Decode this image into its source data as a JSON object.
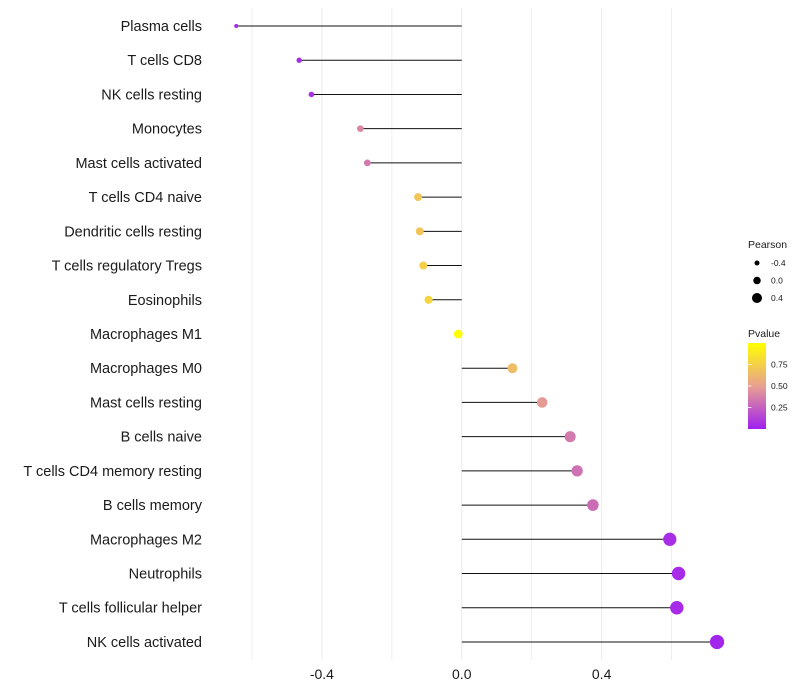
{
  "chart_data": {
    "type": "lollipop",
    "title": "",
    "xlabel": "",
    "ylabel": "",
    "xlim": [
      -0.72,
      0.79
    ],
    "xticks": [
      -0.4,
      0.0,
      0.4
    ],
    "xtick_labels": [
      "-0.4",
      "0.0",
      "0.4"
    ],
    "grid": true,
    "legend_position": "right",
    "categories": [
      "Plasma cells",
      "T cells CD8",
      "NK cells resting",
      "Monocytes",
      "Mast cells activated",
      "T cells CD4 naive",
      "Dendritic cells resting",
      "T cells regulatory  Tregs ",
      "Eosinophils",
      "Macrophages M1",
      "Macrophages M0",
      "Mast cells resting",
      "B cells naive",
      "T cells CD4 memory resting",
      "B cells memory",
      "Macrophages M2",
      "Neutrophils",
      "T cells follicular helper",
      "NK cells activated"
    ],
    "pearson": [
      -0.645,
      -0.465,
      -0.43,
      -0.29,
      -0.27,
      -0.125,
      -0.12,
      -0.11,
      -0.095,
      -0.01,
      0.145,
      0.23,
      0.31,
      0.33,
      0.375,
      0.595,
      0.62,
      0.615,
      0.73
    ],
    "pvalue": [
      0.04,
      0.05,
      0.07,
      0.4,
      0.35,
      0.7,
      0.7,
      0.75,
      0.78,
      0.99,
      0.65,
      0.48,
      0.35,
      0.32,
      0.3,
      0.05,
      0.04,
      0.04,
      0.02
    ],
    "legend_size": {
      "title": "Pearson",
      "values": [
        -0.4,
        0.0,
        0.4
      ],
      "labels": [
        "-0.4",
        "0.0",
        "0.4"
      ]
    },
    "legend_color": {
      "title": "Pvalue",
      "values": [
        0.75,
        0.5,
        0.25
      ],
      "labels": [
        "0.75",
        "0.50",
        "0.25"
      ],
      "range": [
        0.0,
        1.0
      ],
      "low_color": "#a020f0",
      "mid_color": "#e8a090",
      "high_color": "#ffff00"
    },
    "colors": {
      "stem": "#111111",
      "grid": "#ebebeb",
      "size_legend_dot": "#000000"
    }
  }
}
